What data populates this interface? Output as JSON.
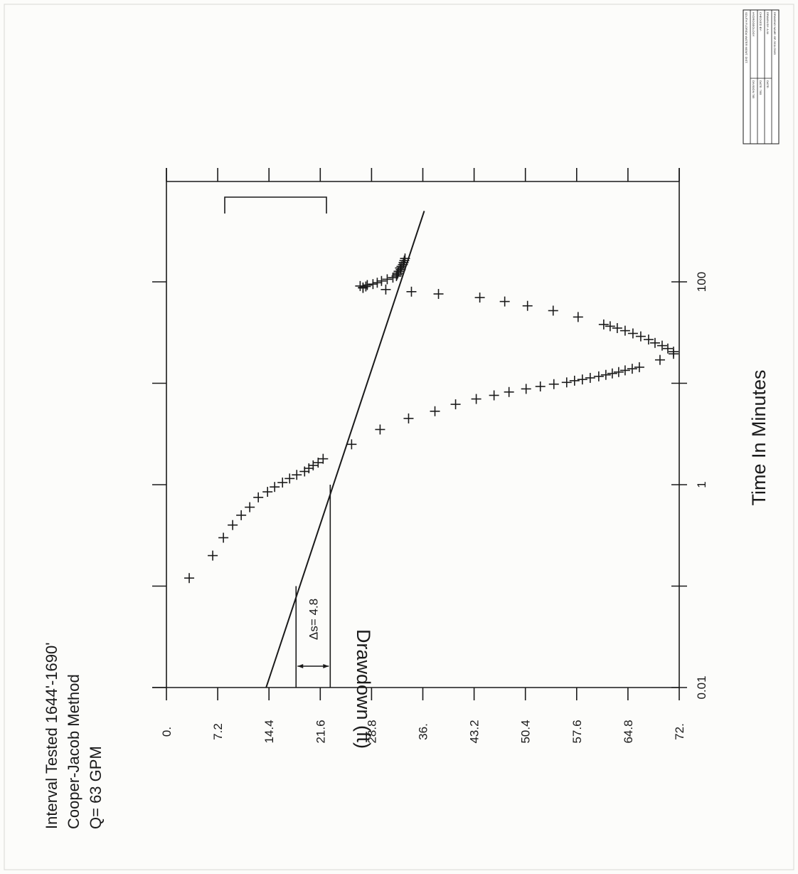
{
  "header": {
    "line1": "Interval Tested 1644'-1690'",
    "line2": "Cooper-Jacob Method",
    "line3": "Q= 63 GPM"
  },
  "title_block": {
    "rows": [
      [
        "DRAWING NAME: BF-3011.DWG",
        ""
      ],
      [
        "DRAWN BY: A.W.",
        "DATE:"
      ],
      [
        "CHECKED BY:",
        "DATE: 7/95"
      ],
      [
        "HYDROGEOLOGY",
        "DIVISION 785"
      ],
      [
        "SOUTH FLORIDA WATER MGMT. DIST.",
        ""
      ]
    ]
  },
  "chart_data": {
    "type": "scatter",
    "xlabel": "Time In Minutes",
    "ylabel": "Drawdown (ft)",
    "x_scale": "log",
    "xlim": [
      0.01,
      500
    ],
    "ylim": [
      0,
      72
    ],
    "x_ticks": [
      0.01,
      1,
      100
    ],
    "x_tick_labels": [
      "0.01",
      "1",
      "100"
    ],
    "y_ticks": [
      0,
      7.2,
      14.4,
      21.6,
      28.8,
      36,
      43.2,
      50.4,
      57.6,
      64.8,
      72
    ],
    "y_tick_labels": [
      "0.",
      "7.2",
      "14.4",
      "21.6",
      "28.8",
      "36.",
      "43.2",
      "50.4",
      "57.6",
      "64.8",
      "72."
    ],
    "fit_line": {
      "x": [
        0.01,
        500
      ],
      "y": [
        14.0,
        36.2
      ]
    },
    "delta_s_annotation": {
      "label": "Δs= 4.8",
      "x0": 0.1,
      "x1": 1.0,
      "y_low": 18.2,
      "y_high": 23.0
    },
    "series": [
      {
        "values": [
          {
            "x": 0.12,
            "y": 3.2
          },
          {
            "x": 0.2,
            "y": 6.5
          },
          {
            "x": 0.3,
            "y": 8.0
          },
          {
            "x": 0.4,
            "y": 9.3
          },
          {
            "x": 0.5,
            "y": 10.5
          },
          {
            "x": 0.6,
            "y": 11.7
          },
          {
            "x": 0.75,
            "y": 12.9
          },
          {
            "x": 0.85,
            "y": 14.2
          },
          {
            "x": 0.95,
            "y": 15.2
          },
          {
            "x": 1.05,
            "y": 16.3
          },
          {
            "x": 1.15,
            "y": 17.3
          },
          {
            "x": 1.25,
            "y": 18.3
          },
          {
            "x": 1.35,
            "y": 19.4
          },
          {
            "x": 1.45,
            "y": 20.0
          },
          {
            "x": 1.55,
            "y": 20.6
          },
          {
            "x": 1.65,
            "y": 21.3
          },
          {
            "x": 1.8,
            "y": 22.0
          },
          {
            "x": 2.5,
            "y": 26.0
          },
          {
            "x": 3.5,
            "y": 30.0
          },
          {
            "x": 4.5,
            "y": 34.0
          },
          {
            "x": 5.3,
            "y": 37.7
          },
          {
            "x": 6.2,
            "y": 40.6
          },
          {
            "x": 7.0,
            "y": 43.5
          },
          {
            "x": 7.6,
            "y": 46.0
          },
          {
            "x": 8.2,
            "y": 48.1
          },
          {
            "x": 8.8,
            "y": 50.5
          },
          {
            "x": 9.3,
            "y": 52.5
          },
          {
            "x": 9.8,
            "y": 54.4
          },
          {
            "x": 10.2,
            "y": 56.2
          },
          {
            "x": 10.6,
            "y": 57.3
          },
          {
            "x": 10.9,
            "y": 58.4
          },
          {
            "x": 11.3,
            "y": 59.5
          },
          {
            "x": 11.7,
            "y": 60.7
          },
          {
            "x": 12.1,
            "y": 61.7
          },
          {
            "x": 12.5,
            "y": 62.6
          },
          {
            "x": 12.9,
            "y": 63.5
          },
          {
            "x": 13.4,
            "y": 64.4
          },
          {
            "x": 13.9,
            "y": 65.4
          },
          {
            "x": 14.4,
            "y": 66.4
          },
          {
            "x": 17.0,
            "y": 69.3
          },
          {
            "x": 19.5,
            "y": 71.2
          },
          {
            "x": 20.5,
            "y": 71.2
          },
          {
            "x": 22.0,
            "y": 70.4
          },
          {
            "x": 23.5,
            "y": 69.6
          },
          {
            "x": 25.0,
            "y": 68.6
          },
          {
            "x": 27.0,
            "y": 67.7
          },
          {
            "x": 29.0,
            "y": 66.6
          },
          {
            "x": 31.0,
            "y": 65.5
          },
          {
            "x": 33.0,
            "y": 64.4
          },
          {
            "x": 35.0,
            "y": 63.3
          },
          {
            "x": 36.5,
            "y": 62.3
          },
          {
            "x": 38.0,
            "y": 61.4
          },
          {
            "x": 45.0,
            "y": 57.8
          },
          {
            "x": 52.0,
            "y": 54.3
          },
          {
            "x": 58.0,
            "y": 50.7
          },
          {
            "x": 64.0,
            "y": 47.5
          },
          {
            "x": 70.0,
            "y": 44.0
          },
          {
            "x": 76.0,
            "y": 38.2
          },
          {
            "x": 80.0,
            "y": 34.4
          },
          {
            "x": 84.0,
            "y": 30.8
          },
          {
            "x": 87.0,
            "y": 27.6
          },
          {
            "x": 88.0,
            "y": 27.6
          },
          {
            "x": 90.0,
            "y": 28.0
          },
          {
            "x": 91.0,
            "y": 27.2
          },
          {
            "x": 93.0,
            "y": 28.2
          },
          {
            "x": 95.0,
            "y": 29.0
          },
          {
            "x": 98.0,
            "y": 29.6
          },
          {
            "x": 102.0,
            "y": 30.2
          },
          {
            "x": 106.0,
            "y": 31.0
          },
          {
            "x": 110.0,
            "y": 31.8
          },
          {
            "x": 114.0,
            "y": 32.3
          },
          {
            "x": 118.0,
            "y": 32.4
          },
          {
            "x": 122.0,
            "y": 32.5
          },
          {
            "x": 127.0,
            "y": 32.6
          },
          {
            "x": 132.0,
            "y": 32.9
          },
          {
            "x": 137.0,
            "y": 32.8
          },
          {
            "x": 142.0,
            "y": 33.0
          },
          {
            "x": 148.0,
            "y": 33.2
          },
          {
            "x": 155.0,
            "y": 33.3
          },
          {
            "x": 162.0,
            "y": 33.4
          },
          {
            "x": 170.0,
            "y": 33.5
          }
        ]
      }
    ]
  }
}
